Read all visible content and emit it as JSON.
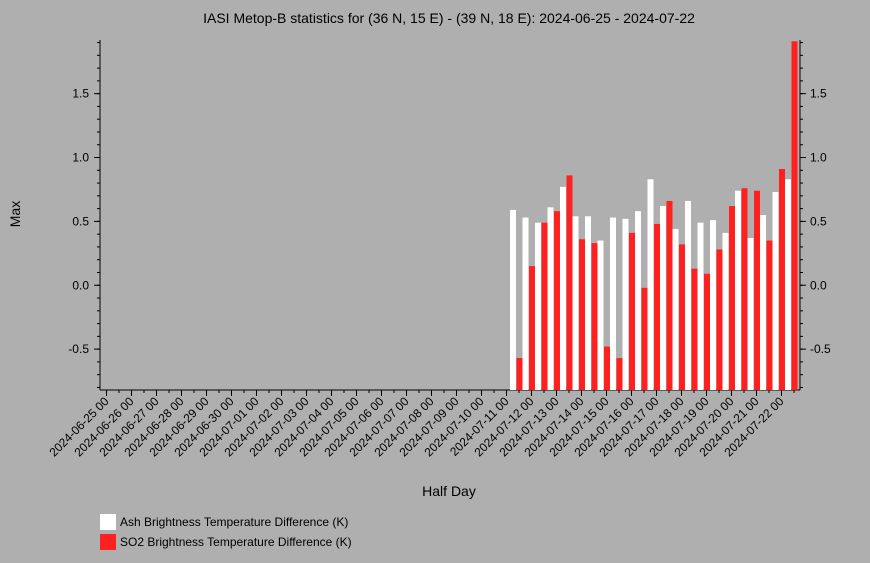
{
  "chart_data": {
    "type": "bar",
    "title": "IASI Metop-B statistics for (36 N, 15 E) - (39 N, 18 E): 2024-06-25 - 2024-07-22",
    "xlabel": "Half Day",
    "ylabel": "Max",
    "ylim": [
      -0.82,
      1.92
    ],
    "yticks": [
      -0.5,
      0.0,
      0.5,
      1.0,
      1.5
    ],
    "ytick_labels": [
      "-0.5",
      "0.0",
      "0.5",
      "1.0",
      "1.5"
    ],
    "x_tick_labels": [
      "2024-06-25 00",
      "2024-06-26 00",
      "2024-06-27 00",
      "2024-06-28 00",
      "2024-06-29 00",
      "2024-06-30 00",
      "2024-07-01 00",
      "2024-07-02 00",
      "2024-07-03 00",
      "2024-07-04 00",
      "2024-07-05 00",
      "2024-07-06 00",
      "2024-07-07 00",
      "2024-07-08 00",
      "2024-07-09 00",
      "2024-07-10 00",
      "2024-07-11 00",
      "2024-07-12 00",
      "2024-07-13 00",
      "2024-07-14 00",
      "2024-07-15 00",
      "2024-07-16 00",
      "2024-07-17 00",
      "2024-07-18 00",
      "2024-07-19 00",
      "2024-07-20 00",
      "2024-07-21 00",
      "2024-07-22 00"
    ],
    "grid": false,
    "legend_position": "bottom-left",
    "x": [
      "2024-07-11 12",
      "2024-07-12 00",
      "2024-07-12 12",
      "2024-07-13 00",
      "2024-07-13 12",
      "2024-07-14 00",
      "2024-07-14 12",
      "2024-07-15 00",
      "2024-07-15 12",
      "2024-07-16 00",
      "2024-07-16 12",
      "2024-07-17 00",
      "2024-07-17 12",
      "2024-07-18 00",
      "2024-07-18 12",
      "2024-07-19 00",
      "2024-07-19 12",
      "2024-07-20 00",
      "2024-07-20 12",
      "2024-07-21 00",
      "2024-07-21 12",
      "2024-07-22 00",
      "2024-07-22 12"
    ],
    "series": [
      {
        "name": "Ash Brightness Temperature Difference (K)",
        "color": "#ffffff",
        "values": [
          0.59,
          0.53,
          0.49,
          0.61,
          0.77,
          0.54,
          0.54,
          0.35,
          0.53,
          0.52,
          0.58,
          0.83,
          0.62,
          0.44,
          0.66,
          0.49,
          0.51,
          0.41,
          0.74,
          0.37,
          0.55,
          0.73,
          0.83
        ]
      },
      {
        "name": "SO2 Brightness Temperature Difference (K)",
        "color": "#ff2020",
        "values": [
          -0.57,
          0.15,
          0.49,
          0.58,
          0.86,
          0.36,
          0.33,
          -0.48,
          -0.57,
          0.41,
          -0.02,
          0.48,
          0.66,
          0.32,
          0.13,
          0.09,
          0.28,
          0.62,
          0.76,
          0.74,
          0.35,
          0.91,
          1.91
        ]
      }
    ]
  }
}
